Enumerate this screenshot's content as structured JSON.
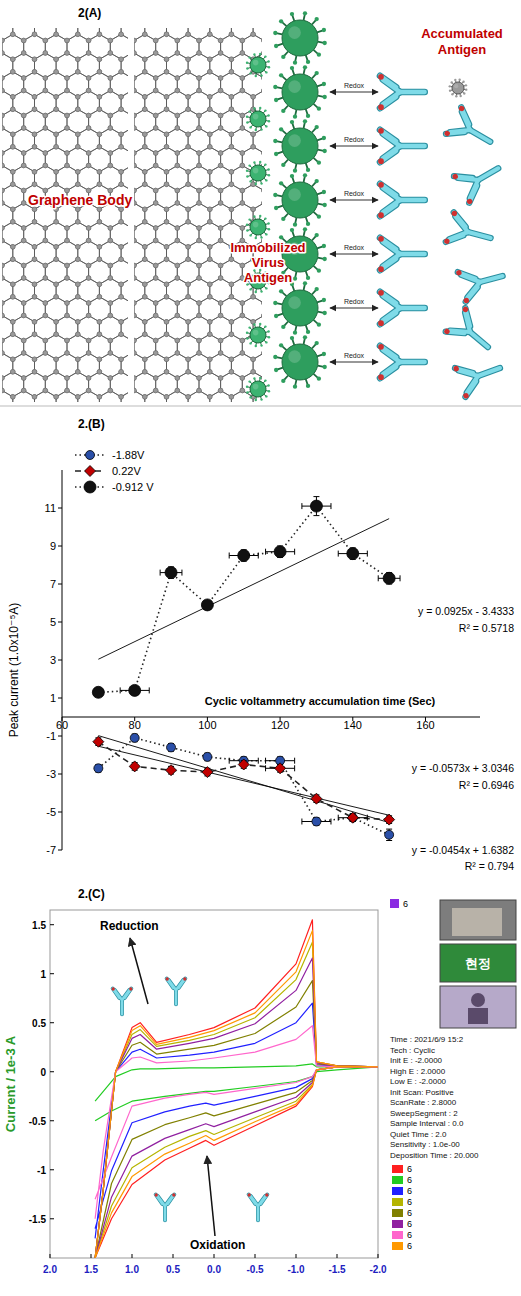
{
  "diagram": {
    "title": "2(A)",
    "labels": {
      "graphene": "Graphene Body",
      "virus": "Immobilized Virus Antigen",
      "accumulated": "Accumulated Antigen",
      "redox": "Redox"
    }
  },
  "chart_data": [
    {
      "type": "line",
      "title": "2.(B)",
      "x_label": "Cyclic voltammetry accumulation time (Sec)",
      "y_label": "Peak current (1.0x10⁻⁵A)",
      "xlim": [
        60,
        175
      ],
      "xticks": [
        60,
        80,
        100,
        120,
        140,
        160
      ],
      "ylim": [
        -7,
        13
      ],
      "yticks": [
        11,
        9,
        7,
        5,
        3,
        1,
        -1,
        -3,
        -5,
        -7
      ],
      "grid": false,
      "legend": "top-left",
      "x": [
        70,
        80,
        90,
        100,
        110,
        120,
        130,
        140,
        150
      ],
      "series": [
        {
          "name": "-1.88V",
          "color": "#2a4fa8",
          "marker": "circle",
          "line_style": "dotted",
          "values": [
            -2.7,
            -1.1,
            -1.6,
            -2.1,
            -2.3,
            -2.3,
            -5.5,
            -5.3,
            -6.2
          ],
          "x_errors": [
            0,
            0,
            0,
            0,
            4,
            4,
            4,
            0,
            0
          ],
          "y_errors": [
            0.2,
            0.2,
            0.2,
            0.2,
            0.2,
            0.2,
            0.2,
            0.2,
            0.3
          ]
        },
        {
          "name": "0.22V",
          "color": "#c00000",
          "marker": "diamond",
          "line_style": "dashed",
          "values": [
            -1.3,
            -2.6,
            -2.8,
            -2.9,
            -2.5,
            -2.7,
            -4.3,
            -5.3,
            -5.4
          ],
          "x_errors": [
            0,
            0,
            0,
            0,
            0,
            4,
            0,
            4,
            0
          ],
          "y_errors": [
            0.2,
            0.2,
            0.2,
            0.2,
            0.2,
            0.2,
            0.2,
            0.2,
            0.2
          ]
        },
        {
          "name": "-0.912 V",
          "color": "#111111",
          "marker": "large-circle",
          "line_style": "dotted",
          "values": [
            1.3,
            1.4,
            7.6,
            5.9,
            8.5,
            8.7,
            11.1,
            8.6,
            7.3
          ],
          "x_errors": [
            0,
            4,
            3,
            0,
            4,
            4,
            4,
            4,
            3
          ],
          "y_errors": [
            0.2,
            0.2,
            0.3,
            0.2,
            0.3,
            0.3,
            0.5,
            0.3,
            0.3
          ]
        }
      ],
      "trendlines": [
        {
          "x": [
            70,
            150
          ],
          "values": [
            3.04,
            10.44
          ],
          "equation": "y = 0.0925x - 3.4333",
          "r_squared": "R² = 0.5718"
        },
        {
          "x": [
            70,
            150
          ],
          "values": [
            -0.98,
            -5.56
          ],
          "equation": "y = -0.0573x + 3.0346",
          "r_squared": "R² = 0.6946"
        },
        {
          "x": [
            70,
            150
          ],
          "values": [
            -1.54,
            -5.17
          ],
          "equation": "y = -0.0454x + 1.6382",
          "r_squared": "R² = 0.794"
        }
      ]
    },
    {
      "type": "line",
      "title": "2.(C)",
      "y_label": "Current / 1e-3 A",
      "xlim": [
        2,
        -2
      ],
      "xticks": [
        {
          "value": 2,
          "label": "2.0"
        },
        1.5,
        {
          "value": 1,
          "label": "1.0"
        },
        0.5,
        {
          "value": 0,
          "label": "0.0"
        },
        -0.5,
        {
          "value": -1,
          "label": "-1.0"
        },
        -1.5,
        {
          "value": -2,
          "label": "-2.0"
        }
      ],
      "ylim": [
        -1.9,
        1.65
      ],
      "yticks": [
        1.5,
        1,
        0.5,
        0,
        -0.5,
        -1,
        -1.5
      ],
      "grid": false,
      "legend": "right",
      "annotations": [
        "Reduction",
        "Oxidation"
      ],
      "x": [
        1.45,
        1.35,
        1.2,
        1,
        0.9,
        0.7,
        0.3,
        0,
        -0.5,
        -1,
        -1.2,
        -1.25,
        -1.5,
        -2,
        -2,
        -1.5,
        -1.25,
        -1.2,
        -1,
        -0.5,
        0,
        0.1,
        0.3,
        0.6,
        1,
        1.25,
        1.45
      ],
      "series": [
        {
          "name": "6",
          "color": "#ff2020",
          "values": [
            -1.9,
            -1.2,
            0,
            0.45,
            0.5,
            0.3,
            0.38,
            0.45,
            0.65,
            1.1,
            1.55,
            0.1,
            0.06,
            0.05,
            0.05,
            0.05,
            0.02,
            -0.15,
            -0.35,
            -0.55,
            -0.75,
            -0.7,
            -0.78,
            -0.9,
            -1.15,
            -1.5,
            -1.9
          ]
        },
        {
          "name": "6",
          "color": "#22cc22",
          "values": [
            -0.3,
            -0.2,
            -0.05,
            0.02,
            0.03,
            0.03,
            0.04,
            0.04,
            0.05,
            0.06,
            0.08,
            0.05,
            0.05,
            0.05,
            0.05,
            0.02,
            0,
            -0.05,
            -0.1,
            -0.15,
            -0.2,
            -0.2,
            -0.22,
            -0.25,
            -0.3,
            -0.4,
            -0.5
          ]
        },
        {
          "name": "6",
          "color": "#2020ff",
          "values": [
            -1.7,
            -1,
            0,
            0.2,
            0.23,
            0.14,
            0.17,
            0.2,
            0.29,
            0.5,
            0.7,
            0.07,
            0.06,
            0.05,
            0.05,
            0.05,
            0.02,
            -0.07,
            -0.16,
            -0.25,
            -0.34,
            -0.32,
            -0.35,
            -0.41,
            -0.52,
            -1.01,
            -1.6
          ]
        },
        {
          "name": "6",
          "color": "#b5b500",
          "values": [
            -1.9,
            -1.2,
            0,
            0.38,
            0.43,
            0.26,
            0.32,
            0.38,
            0.55,
            0.94,
            1.32,
            0.1,
            0.06,
            0.05,
            0.05,
            0.05,
            0.02,
            -0.13,
            -0.3,
            -0.47,
            -0.64,
            -0.6,
            -0.66,
            -0.77,
            -0.98,
            -1.37,
            -1.9
          ]
        },
        {
          "name": "6",
          "color": "#808000",
          "values": [
            -1.9,
            -1.2,
            0,
            0.27,
            0.3,
            0.18,
            0.23,
            0.27,
            0.39,
            0.66,
            0.93,
            0.08,
            0.06,
            0.05,
            0.05,
            0.05,
            0.02,
            -0.09,
            -0.21,
            -0.33,
            -0.45,
            -0.42,
            -0.47,
            -0.54,
            -0.69,
            -1.14,
            -1.9
          ]
        },
        {
          "name": "6",
          "color": "#9020a0",
          "values": [
            -1.9,
            -1.2,
            0,
            0.34,
            0.38,
            0.23,
            0.29,
            0.34,
            0.49,
            0.83,
            1.16,
            0.09,
            0.06,
            0.05,
            0.05,
            0.05,
            0.02,
            -0.11,
            -0.26,
            -0.41,
            -0.56,
            -0.53,
            -0.59,
            -0.68,
            -0.86,
            -1.28,
            -1.9
          ]
        },
        {
          "name": "6",
          "color": "#ff66cc",
          "values": [
            -1.5,
            -0.8,
            0,
            0.14,
            0.15,
            0.09,
            0.11,
            0.14,
            0.2,
            0.33,
            0.47,
            0.06,
            0.05,
            0.05,
            0.05,
            0.05,
            0.02,
            -0.05,
            -0.11,
            -0.17,
            -0.23,
            -0.21,
            -0.23,
            -0.27,
            -0.35,
            -0.87,
            -1.3
          ]
        },
        {
          "name": "6",
          "color": "#ff9900",
          "values": [
            -1.9,
            -1.2,
            0,
            0.42,
            0.47,
            0.28,
            0.35,
            0.42,
            0.6,
            1.02,
            1.44,
            0.1,
            0.06,
            0.05,
            0.05,
            0.05,
            0.02,
            -0.14,
            -0.33,
            -0.51,
            -0.7,
            -0.65,
            -0.73,
            -0.84,
            -1.07,
            -1.44,
            -1.9
          ]
        }
      ]
    }
  ],
  "screenshot": {
    "header_label": "6",
    "thumbnail_text": "현정",
    "info": [
      "Time : 2021/6/9 15:2",
      "Tech : Cyclic",
      "Init E : -2.0000",
      "High E : 2.0000",
      "Low E : -2.0000",
      "Init Scan: Positive",
      "ScanRate : 2.8000",
      "SweepSegment : 2",
      "Sample Interval : 0.0",
      "Quiet Time : 2.0",
      "Sensitivity : 1.0e-00",
      "Deposition Time : 20.000"
    ]
  }
}
